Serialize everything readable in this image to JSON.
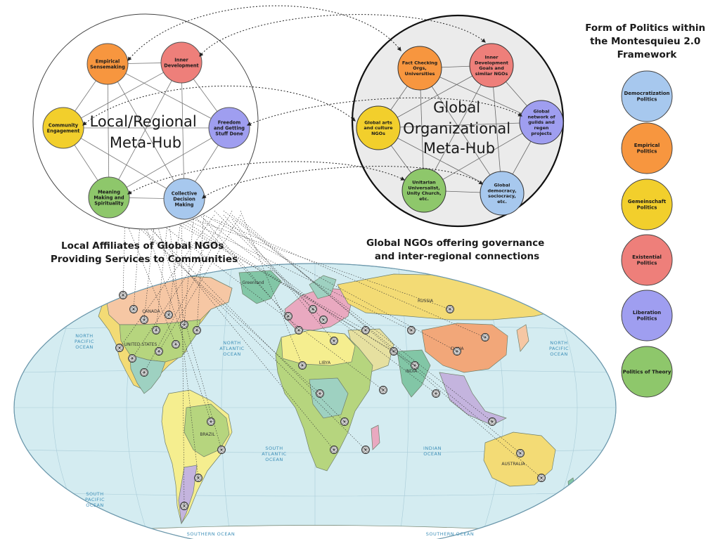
{
  "legend": {
    "title_lines": [
      "Form of Politics within",
      "the Montesquieu 2.0",
      "Framework"
    ],
    "items": [
      {
        "lines": [
          "Democratization",
          "Politics"
        ],
        "color": "#a7c8ee"
      },
      {
        "lines": [
          "Empirical",
          "Politics"
        ],
        "color": "#f7963f"
      },
      {
        "lines": [
          "Gemeinschaft",
          "Politics"
        ],
        "color": "#f2cf2c"
      },
      {
        "lines": [
          "Existential",
          "Politics"
        ],
        "color": "#ee7f7a"
      },
      {
        "lines": [
          "Liberation",
          "Politics"
        ],
        "color": "#9f9ef0"
      },
      {
        "lines": [
          "Politics of Theory"
        ],
        "color": "#8ec76b"
      }
    ]
  },
  "local_hub": {
    "title_lines": [
      "Local/Regional",
      "Meta-Hub"
    ],
    "nodes": [
      {
        "lines": [
          "Empirical",
          "Sensemaking"
        ],
        "color": "#f7963f"
      },
      {
        "lines": [
          "Inner",
          "Development"
        ],
        "color": "#ee7f7a"
      },
      {
        "lines": [
          "Community",
          "Engagement"
        ],
        "color": "#f2cf2c"
      },
      {
        "lines": [
          "Freedom",
          "and Getting",
          "Stuff Done"
        ],
        "color": "#9f9ef0"
      },
      {
        "lines": [
          "Meaning",
          "Making and",
          "Spirituality"
        ],
        "color": "#8ec76b"
      },
      {
        "lines": [
          "Collective",
          "Decision",
          "Making"
        ],
        "color": "#a7c8ee"
      }
    ]
  },
  "global_hub": {
    "title_lines": [
      "Global",
      "Organizational",
      "Meta-Hub"
    ],
    "nodes": [
      {
        "lines": [
          "Fact Checking",
          "Orgs,",
          "Universities"
        ],
        "color": "#f7963f"
      },
      {
        "lines": [
          "Inner",
          "Development",
          "Goals and",
          "similar NGOs"
        ],
        "color": "#ee7f7a"
      },
      {
        "lines": [
          "Global arts",
          "and culture",
          "NGOs"
        ],
        "color": "#f2cf2c"
      },
      {
        "lines": [
          "Global",
          "network of",
          "guilds and",
          "regen",
          "projects"
        ],
        "color": "#9f9ef0"
      },
      {
        "lines": [
          "Unitarian",
          "Universalist,",
          "Unity Church,",
          "etc."
        ],
        "color": "#8ec76b"
      },
      {
        "lines": [
          "Global",
          "democracy,",
          "sociocracy,",
          "etc."
        ],
        "color": "#a7c8ee"
      }
    ]
  },
  "captions": {
    "local_lines": [
      "Local Affiliates of Global NGOs",
      "Providing Services to Communities"
    ],
    "global_lines": [
      "Global NGOs offering governance",
      "and inter-regional connections"
    ]
  },
  "map": {
    "ocean_labels": [
      {
        "lines": [
          "NORTH",
          "PACIFIC",
          "OCEAN"
        ]
      },
      {
        "lines": [
          "NORTH",
          "ATLANTIC",
          "OCEAN"
        ]
      },
      {
        "lines": [
          "NORTH",
          "PACIFIC",
          "OCEAN"
        ]
      },
      {
        "lines": [
          "SOUTH",
          "ATLANTIC",
          "OCEAN"
        ]
      },
      {
        "lines": [
          "INDIAN",
          "OCEAN"
        ]
      },
      {
        "lines": [
          "SOUTH",
          "PACIFIC",
          "OCEAN"
        ]
      },
      {
        "lines": [
          "SOUTHERN OCEAN"
        ]
      },
      {
        "lines": [
          "SOUTHERN OCEAN"
        ]
      }
    ],
    "country_labels": [
      "CANADA",
      "UNITED STATES",
      "BRAZIL",
      "RUSSIA",
      "CHINA",
      "AUSTRALIA",
      "Greenland",
      "LIBYA",
      "INDIA"
    ],
    "colors": {
      "ocean": "#d4ecf1",
      "palette": [
        "#f5ee8f",
        "#b6d57e",
        "#f6c7a4",
        "#e9a9c0",
        "#9ed1c1",
        "#f3db75",
        "#c4b4de",
        "#82c6a6",
        "#f2a779",
        "#e6e0a0"
      ]
    }
  }
}
